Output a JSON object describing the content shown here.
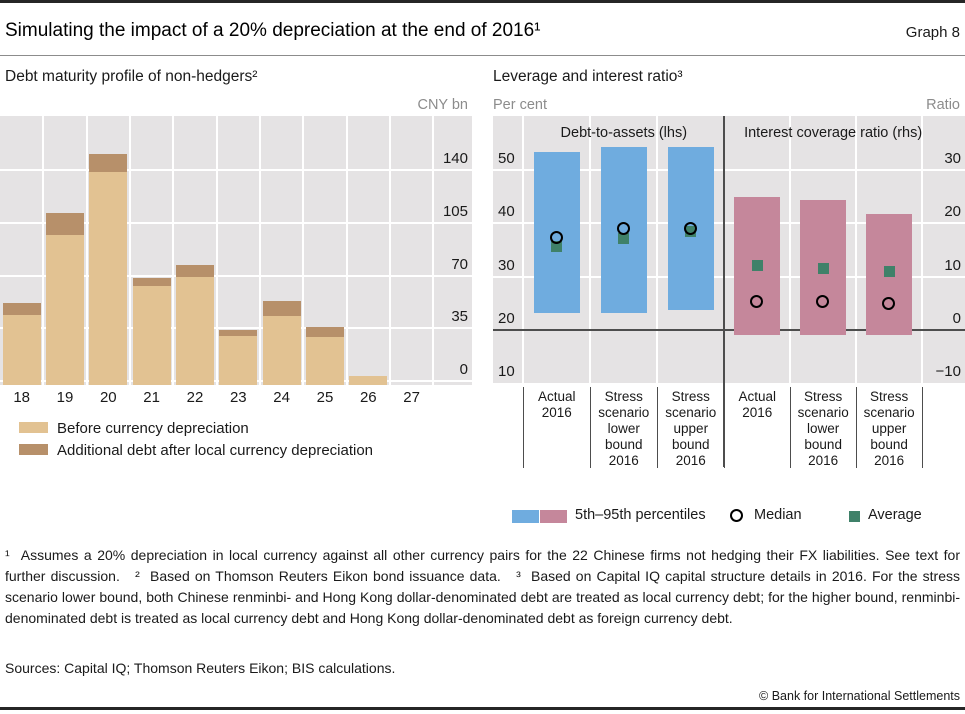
{
  "header": {
    "title": "Simulating the impact of a 20% depreciation at the end of 2016¹",
    "graph_label": "Graph 8"
  },
  "chart_data": [
    {
      "id": "debt-maturity-profile",
      "type": "bar",
      "stacked": true,
      "title": "Debt maturity profile of non-hedgers²",
      "unit": "CNY bn",
      "categories": [
        "18",
        "19",
        "20",
        "21",
        "22",
        "23",
        "24",
        "25",
        "26",
        "27"
      ],
      "series": [
        {
          "name": "Before currency depreciation",
          "color": "#e2c292",
          "values": [
            44,
            97,
            139,
            63,
            69,
            30,
            43,
            29,
            3.5,
            0
          ]
        },
        {
          "name": "Additional debt after local currency depreciation",
          "color": "#b7906a",
          "values": [
            7.5,
            14.5,
            11.5,
            5.5,
            8,
            4,
            10,
            7,
            0,
            0
          ]
        }
      ],
      "yticks": [
        0,
        35,
        70,
        105,
        140
      ],
      "ylim": [
        -2.5,
        175
      ],
      "grid": true,
      "legend_position": "below-left"
    },
    {
      "id": "leverage-and-interest-ratio",
      "type": "range-bar",
      "title": "Leverage and interest ratio³",
      "panels": [
        {
          "label": "Debt-to-assets (lhs)",
          "axis": "left"
        },
        {
          "label": "Interest coverage ratio (rhs)",
          "axis": "right"
        }
      ],
      "axis_left": {
        "unit": "Per cent",
        "ticks": [
          10,
          20,
          30,
          40,
          50
        ],
        "lim": [
          9.8,
          60.9
        ]
      },
      "axis_right": {
        "unit": "Ratio",
        "ticks": [
          -10,
          0,
          10,
          20,
          30
        ],
        "lim": [
          -10.2,
          40.9
        ]
      },
      "categories": [
        "Actual\n2016",
        "Stress\nscenario\nlower\nbound\n2016",
        "Stress\nscenario\nupper\nbound\n2016",
        "Actual\n2016",
        "Stress\nscenario\nlower\nbound\n2016",
        "Stress\nscenario\nupper\nbound\n2016"
      ],
      "groups": [
        {
          "panel": 0,
          "p5": 23.1,
          "p95": 53.4,
          "median": 37.2,
          "average": 35.7
        },
        {
          "panel": 0,
          "p5": 23.1,
          "p95": 54.3,
          "median": 38.9,
          "average": 37.2
        },
        {
          "panel": 0,
          "p5": 23.7,
          "p95": 54.3,
          "median": 38.9,
          "average": 38.5
        },
        {
          "panel": 1,
          "p5": -1.0,
          "p95": 25.0,
          "median": 5.3,
          "average": 12.1
        },
        {
          "panel": 1,
          "p5": -1.0,
          "p95": 24.3,
          "median": 5.2,
          "average": 11.6
        },
        {
          "panel": 1,
          "p5": -1.0,
          "p95": 21.7,
          "median": 4.9,
          "average": 11.0
        }
      ],
      "legend": {
        "range_label": "5th–95th percentiles",
        "median_label": "Median",
        "average_label": "Average"
      },
      "colors": {
        "range_lhs": "#6facdf",
        "range_rhs": "#c5879b",
        "median": "#000000",
        "average": "#3f8169",
        "zero_line": "#4d4d4d"
      }
    }
  ],
  "footnotes": "¹  Assumes a 20% depreciation in local currency against all other currency pairs for the 22 Chinese firms not hedging their FX liabilities. See text for further discussion.   ²  Based on Thomson Reuters Eikon bond issuance data.   ³  Based on Capital IQ capital structure details in 2016. For the stress scenario lower bound, both Chinese renminbi- and Hong Kong dollar-denominated debt are treated as local currency debt; for the higher bound, renminbi-denominated debt is treated as local currency debt and Hong Kong dollar-denominated debt as foreign currency debt.",
  "sources": "Sources: Capital IQ; Thomson Reuters Eikon; BIS calculations.",
  "copyright": "© Bank for International Settlements"
}
